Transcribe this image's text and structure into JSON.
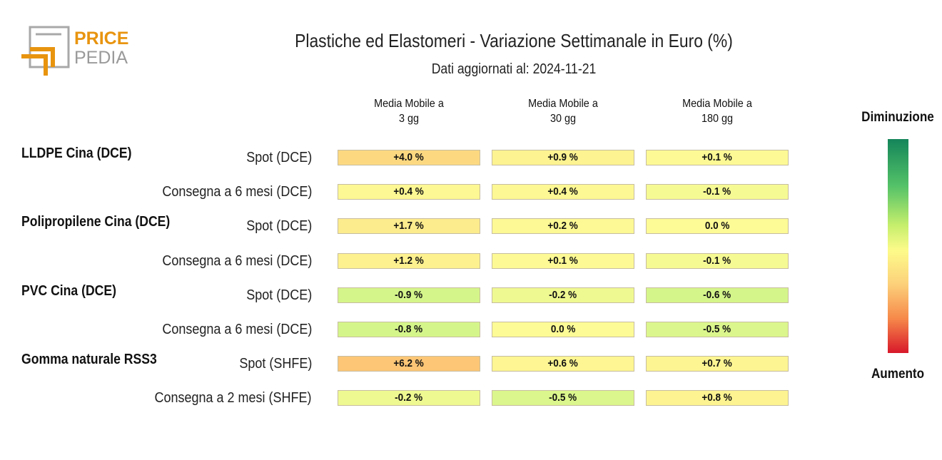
{
  "logo": {
    "line1": "PRICE",
    "line2": "PEDIA",
    "accent": "#e8940f",
    "gray": "#9a9a9a"
  },
  "title": "Plastiche ed Elastomeri - Variazione Settimanale in Euro (%)",
  "subtitle": "Dati aggiornati al: 2024-11-21",
  "legend": {
    "top": "Diminuzione",
    "bottom": "Aumento"
  },
  "chart_data": {
    "type": "table",
    "title": "Plastiche ed Elastomeri - Variazione Settimanale in Euro (%)",
    "subtitle": "Dati aggiornati al: 2024-11-21",
    "columns": [
      {
        "line1": "Media Mobile a",
        "line2": "3 gg"
      },
      {
        "line1": "Media Mobile a",
        "line2": "30 gg"
      },
      {
        "line1": "Media Mobile a",
        "line2": "180 gg"
      }
    ],
    "rows": [
      {
        "group": "LLDPE Cina (DCE)",
        "label": "Spot (DCE)",
        "values": [
          4.0,
          0.9,
          0.1
        ],
        "text": [
          "+4.0 %",
          "+0.9 %",
          "+0.1 %"
        ]
      },
      {
        "group": "",
        "label": "Consegna a 6 mesi (DCE)",
        "values": [
          0.4,
          0.4,
          -0.1
        ],
        "text": [
          "+0.4 %",
          "+0.4 %",
          "-0.1 %"
        ]
      },
      {
        "group": "Polipropilene Cina (DCE)",
        "label": "Spot (DCE)",
        "values": [
          1.7,
          0.2,
          0.0
        ],
        "text": [
          "+1.7 %",
          "+0.2 %",
          "0.0 %"
        ]
      },
      {
        "group": "",
        "label": "Consegna a 6 mesi (DCE)",
        "values": [
          1.2,
          0.1,
          -0.1
        ],
        "text": [
          "+1.2 %",
          "+0.1 %",
          "-0.1 %"
        ]
      },
      {
        "group": "PVC Cina (DCE)",
        "label": "Spot (DCE)",
        "values": [
          -0.9,
          -0.2,
          -0.6
        ],
        "text": [
          "-0.9 %",
          "-0.2 %",
          "-0.6 %"
        ]
      },
      {
        "group": "",
        "label": "Consegna a 6 mesi (DCE)",
        "values": [
          -0.8,
          0.0,
          -0.5
        ],
        "text": [
          "-0.8 %",
          "0.0 %",
          "-0.5 %"
        ]
      },
      {
        "group": "Gomma naturale RSS3",
        "label": "Spot (SHFE)",
        "values": [
          6.2,
          0.6,
          0.7
        ],
        "text": [
          "+6.2 %",
          "+0.6 %",
          "+0.7 %"
        ]
      },
      {
        "group": "",
        "label": "Consegna a 2 mesi (SHFE)",
        "values": [
          -0.2,
          -0.5,
          0.8
        ],
        "text": [
          "-0.2 %",
          "-0.5 %",
          "+0.8 %"
        ]
      }
    ],
    "color_scale": {
      "negative": "#d4f58a",
      "neutral": "#fdfb95",
      "positive": "#fcc676"
    }
  }
}
